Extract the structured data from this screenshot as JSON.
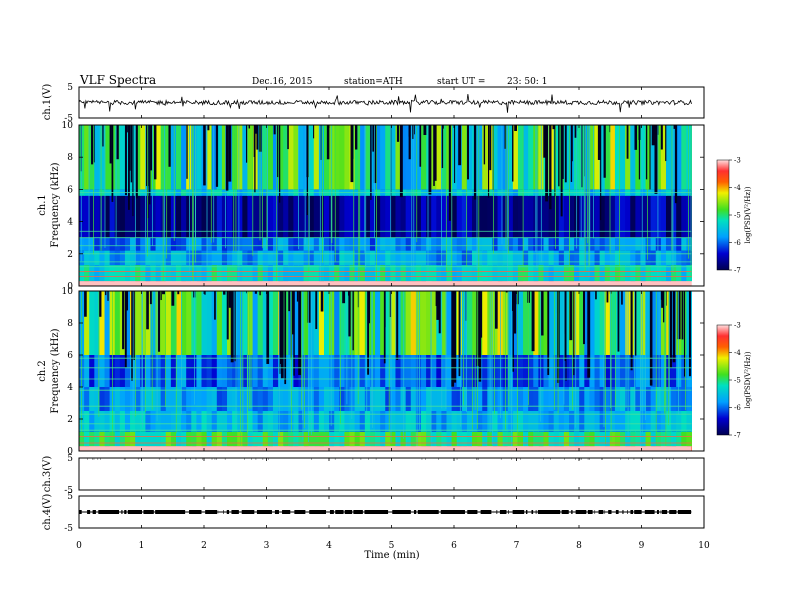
{
  "chart_data": [
    {
      "type": "line",
      "panel": "ch1_waveform",
      "title": "VLF  Spectra",
      "date_label": "Dec.16, 2015",
      "station_label": "station=ATH",
      "start_label": "start  UT  =",
      "start_value": "23: 50: 1",
      "ylabel": "ch.1(V)",
      "ylim": [
        -5,
        5
      ],
      "y_ticks": [
        "5",
        "-5"
      ],
      "xlim": [
        0,
        10
      ],
      "data_xlim": [
        0,
        9.8
      ],
      "baseline": 0
    },
    {
      "type": "heatmap",
      "panel": "ch1_spectrogram",
      "ylabel_channel": "ch.1",
      "ylabel": "Frequency  (kHz)",
      "ylim": [
        0,
        10
      ],
      "y_ticks": [
        "0",
        "2",
        "4",
        "6",
        "8",
        "10"
      ],
      "xlim": [
        0,
        10
      ],
      "data_xlim": [
        0,
        9.8
      ],
      "colorbar_label": "log(PSD(V²/Hz))",
      "colorbar_ticks": [
        "-3",
        "-4",
        "-5",
        "-6",
        "-7"
      ],
      "colorbar_range": [
        -7,
        -3
      ]
    },
    {
      "type": "heatmap",
      "panel": "ch2_spectrogram",
      "ylabel_channel": "ch.2",
      "ylabel": "Frequency  (kHz)",
      "ylim": [
        0,
        10
      ],
      "y_ticks": [
        "0",
        "2",
        "4",
        "6",
        "8",
        "10"
      ],
      "xlim": [
        0,
        10
      ],
      "data_xlim": [
        0,
        9.8
      ],
      "colorbar_label": "log(PSD(V²/Hz))",
      "colorbar_ticks": [
        "-3",
        "-4",
        "-5",
        "-6",
        "-7"
      ],
      "colorbar_range": [
        -7,
        -3
      ]
    },
    {
      "type": "line",
      "panel": "ch3_waveform",
      "ylabel": "ch.3(V)",
      "ylim": [
        -5,
        5
      ],
      "y_ticks": [
        "5",
        "-5"
      ],
      "xlim": [
        0,
        10
      ],
      "data_xlim": [
        0,
        9.8
      ],
      "baseline": 5
    },
    {
      "type": "line",
      "panel": "ch4_waveform",
      "ylabel": "ch.4(V)",
      "ylim": [
        -5,
        5
      ],
      "y_ticks": [
        "5",
        "-5"
      ],
      "xlim": [
        0,
        10
      ],
      "data_xlim": [
        0,
        9.8
      ],
      "baseline": 0,
      "xlabel": "Time  (min)",
      "x_ticks": [
        "0",
        "1",
        "2",
        "3",
        "4",
        "5",
        "6",
        "7",
        "8",
        "9",
        "10"
      ]
    }
  ]
}
